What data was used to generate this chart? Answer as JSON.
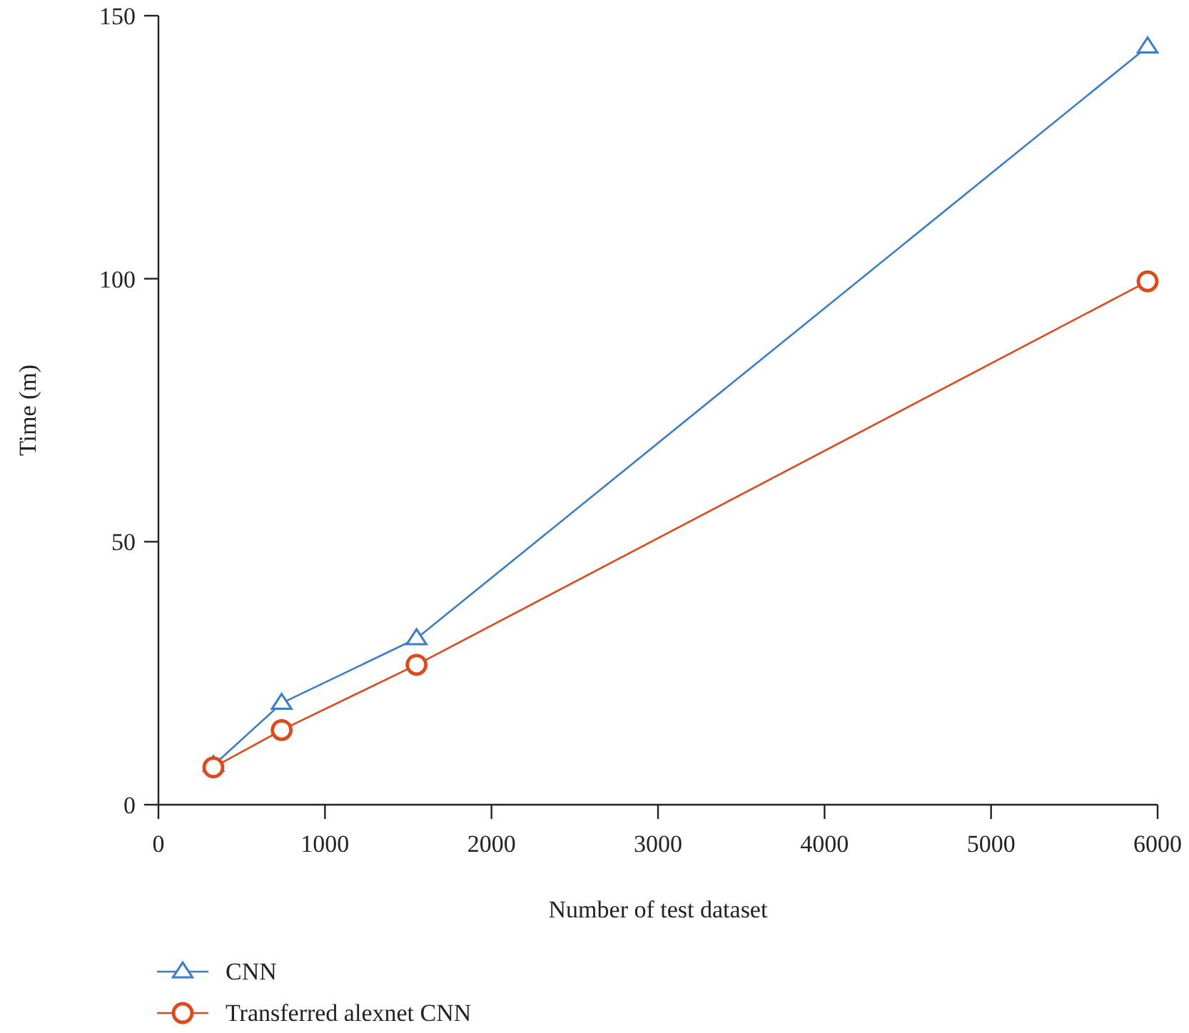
{
  "chart_data": {
    "type": "line",
    "xlabel": "Number of test dataset",
    "ylabel": "Time (m)",
    "xlim": [
      0,
      6000
    ],
    "xticks": [
      0,
      1000,
      2000,
      3000,
      4000,
      5000,
      6000
    ],
    "ylim": [
      0,
      150
    ],
    "yticks": [
      0,
      50,
      100,
      150
    ],
    "legend": "bottom left",
    "grid": false,
    "series": [
      {
        "name": "CNN",
        "color": "#3b7dc8",
        "marker": "triangle",
        "x": [
          330,
          740,
          1550,
          5940
        ],
        "values": [
          7.5,
          19.3,
          31.6,
          144.1
        ]
      },
      {
        "name": "Transferred alexnet CNN",
        "color": "#dc4a1e",
        "marker": "circle",
        "x": [
          330,
          740,
          1550,
          5940
        ],
        "values": [
          7.1,
          14.2,
          26.6,
          99.5
        ]
      }
    ]
  }
}
